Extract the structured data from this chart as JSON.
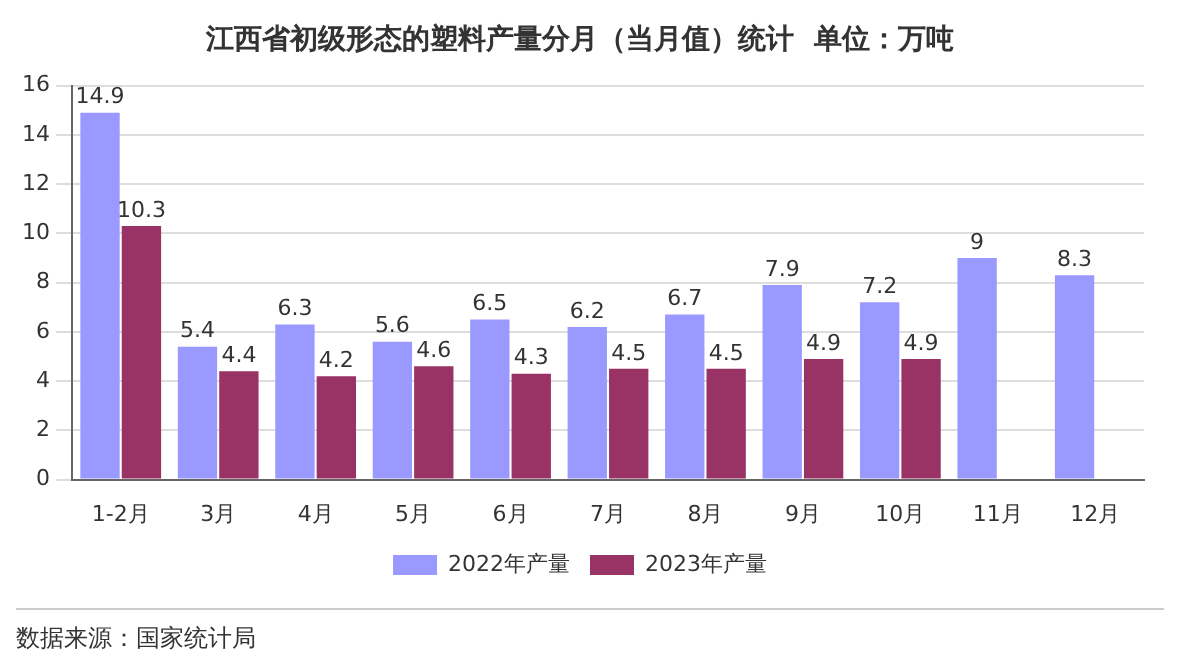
{
  "chart_data": {
    "type": "bar",
    "title": "江西省初级形态的塑料产量分月（当月值）统计  单位：万吨",
    "categories": [
      "1-2月",
      "3月",
      "4月",
      "5月",
      "6月",
      "7月",
      "8月",
      "9月",
      "10月",
      "11月",
      "12月"
    ],
    "series": [
      {
        "name": "2022年产量",
        "color": "#9999ff",
        "values": [
          14.9,
          5.4,
          6.3,
          5.6,
          6.5,
          6.2,
          6.7,
          7.9,
          7.2,
          9,
          8.3
        ]
      },
      {
        "name": "2023年产量",
        "color": "#993366",
        "values": [
          10.3,
          4.4,
          4.2,
          4.6,
          4.3,
          4.5,
          4.5,
          4.9,
          4.9,
          null,
          null
        ]
      }
    ],
    "ylim": [
      0,
      16
    ],
    "yticks": [
      0,
      2,
      4,
      6,
      8,
      10,
      12,
      14,
      16
    ],
    "grid": "y",
    "legend": "bottom",
    "data_labels": true,
    "annotations": [
      "数据来源：国家统计局"
    ]
  }
}
